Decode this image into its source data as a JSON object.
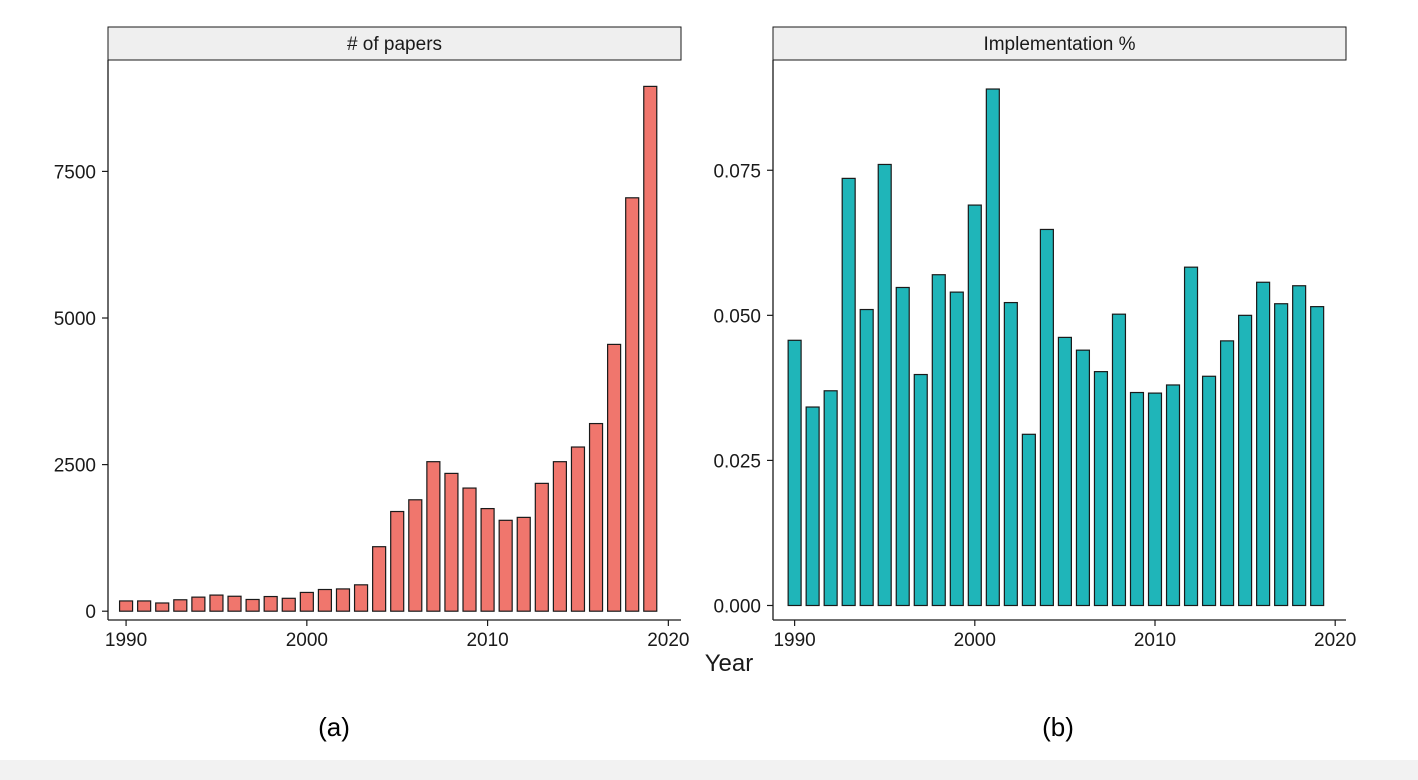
{
  "colors": {
    "papers_fill": "#f0766d",
    "implementation_fill": "#1fb5b9",
    "bar_stroke": "#1a1a1a",
    "strip_fill": "#efefef",
    "axis": "#1a1a1a"
  },
  "x_axis_title": "Year",
  "chart_data": [
    {
      "type": "bar",
      "title": "# of papers",
      "caption": "(a)",
      "xlabel": "Year",
      "ylabel": "",
      "xlim": [
        1989,
        2020.7
      ],
      "ylim": [
        -150,
        9400
      ],
      "x_ticks": [
        1990,
        2000,
        2010,
        2020
      ],
      "y_ticks": [
        0,
        2500,
        5000,
        7500
      ],
      "grid": false,
      "legend": "none",
      "x": [
        1990,
        1991,
        1992,
        1993,
        1994,
        1995,
        1996,
        1997,
        1998,
        1999,
        2000,
        2001,
        2002,
        2003,
        2004,
        2005,
        2006,
        2007,
        2008,
        2009,
        2010,
        2011,
        2012,
        2013,
        2014,
        2015,
        2016,
        2017,
        2018,
        2019
      ],
      "values": [
        175,
        175,
        140,
        195,
        240,
        275,
        255,
        200,
        250,
        220,
        320,
        370,
        380,
        450,
        1100,
        1700,
        1900,
        2550,
        2350,
        2100,
        1750,
        1550,
        1600,
        2180,
        2550,
        2800,
        3200,
        4550,
        7050,
        8950
      ]
    },
    {
      "type": "bar",
      "title": "Implementation %",
      "caption": "(b)",
      "xlabel": "Year",
      "ylabel": "",
      "xlim": [
        1988.8,
        2020.6
      ],
      "ylim": [
        -0.0025,
        0.094
      ],
      "x_ticks": [
        1990,
        2000,
        2010,
        2020
      ],
      "y_ticks": [
        0.0,
        0.025,
        0.05,
        0.075
      ],
      "y_tick_labels": [
        "0.000",
        "0.025",
        "0.050",
        "0.075"
      ],
      "grid": false,
      "legend": "none",
      "x": [
        1990,
        1991,
        1992,
        1993,
        1994,
        1995,
        1996,
        1997,
        1998,
        1999,
        2000,
        2001,
        2002,
        2003,
        2004,
        2005,
        2006,
        2007,
        2008,
        2009,
        2010,
        2011,
        2012,
        2013,
        2014,
        2015,
        2016,
        2017,
        2018,
        2019
      ],
      "values": [
        0.0457,
        0.0342,
        0.037,
        0.0736,
        0.051,
        0.076,
        0.0548,
        0.0398,
        0.057,
        0.054,
        0.069,
        0.089,
        0.0522,
        0.0295,
        0.0648,
        0.0462,
        0.044,
        0.0403,
        0.0502,
        0.0367,
        0.0366,
        0.038,
        0.0583,
        0.0395,
        0.0456,
        0.05,
        0.0557,
        0.052,
        0.0551,
        0.0515
      ]
    }
  ]
}
